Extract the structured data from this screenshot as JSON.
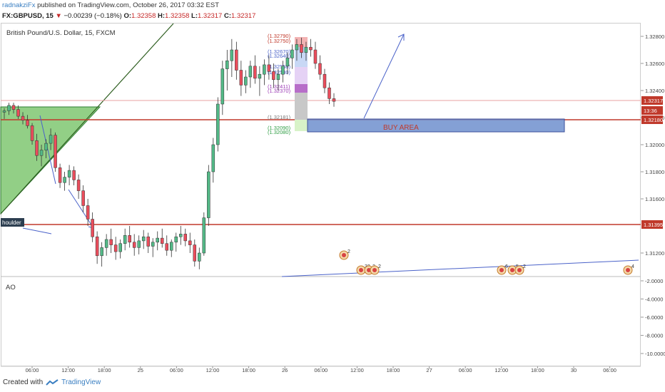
{
  "header": {
    "author": "radnakziFx",
    "published": "published on TradingView.com, October 26, 2017 03:32 EST",
    "symbol": "FX:GBPUSD, 15",
    "change_arrow": "▼",
    "change": "−0.00239 (−0.18%)",
    "o_label": "O:",
    "o_value": "1.32358",
    "h_label": "H:",
    "h_value": "1.32358",
    "l_label": "L:",
    "l_value": "1.32317",
    "c_label": "C:",
    "c_value": "1.32317"
  },
  "chart_title": "British Pound/U.S. Dollar, 15, FXCM",
  "indicator_label": "AO",
  "footer": {
    "created": "Created with",
    "brand": "TradingView"
  },
  "colors": {
    "bull": "#53b987",
    "bear": "#eb4d5c",
    "level_line": "#c0392b",
    "buy_area": "#6f8fce",
    "trendline": "#4a62c9",
    "triangle": "#6dbf5e"
  },
  "chart_data": {
    "type": "candlestick",
    "y_axis": {
      "ticks": [
        "1.32800",
        "1.32600",
        "1.32400",
        "1.32200",
        "1.32000",
        "1.31800",
        "1.31600",
        "1.31200"
      ],
      "labels_highlighted": [
        "1.32317",
        "13:36",
        "1.32180",
        "1.31395"
      ]
    },
    "ao_axis": {
      "ticks": [
        "-2.0000",
        "-4.0000",
        "-6.0000",
        "-8.0000",
        "-10.0000"
      ]
    },
    "x_axis": {
      "ticks": [
        "06:00",
        "12:00",
        "18:00",
        "25",
        "06:00",
        "12:00",
        "18:00",
        "26",
        "06:00",
        "12:00",
        "18:00",
        "27",
        "06:00",
        "12:00",
        "18:00",
        "30",
        "06:00"
      ]
    },
    "levels": [
      {
        "name": "resistance",
        "value": 1.3218
      },
      {
        "name": "support",
        "value": 1.31395
      }
    ],
    "annotations": [
      "BUY AREA",
      "houlder"
    ],
    "fib_labels": [
      "(1.32790)",
      "(1.32750)",
      "(1.32670)",
      "(1.32640)",
      "(1.32558)",
      "(1.32530)",
      "(1.32411)",
      "(1.32370)",
      "(1.32181)",
      "(1.32090)",
      "(1.32080)"
    ],
    "event_labels": [
      "2",
      "32",
      "2",
      "2",
      "6",
      "5",
      "2",
      "4"
    ],
    "approx_candles": [
      [
        1.3224,
        1.3227,
        1.3219,
        1.3225
      ],
      [
        1.3225,
        1.3231,
        1.3222,
        1.3229
      ],
      [
        1.3229,
        1.3231,
        1.3223,
        1.3226
      ],
      [
        1.3226,
        1.3229,
        1.3219,
        1.3221
      ],
      [
        1.3221,
        1.3224,
        1.3215,
        1.3218
      ],
      [
        1.3218,
        1.3222,
        1.3212,
        1.3214
      ],
      [
        1.3214,
        1.3216,
        1.32,
        1.3203
      ],
      [
        1.3203,
        1.3208,
        1.3188,
        1.3192
      ],
      [
        1.3192,
        1.32,
        1.3184,
        1.3196
      ],
      [
        1.3196,
        1.3204,
        1.319,
        1.3201
      ],
      [
        1.3201,
        1.3212,
        1.3196,
        1.3207
      ],
      [
        1.3207,
        1.3209,
        1.318,
        1.3183
      ],
      [
        1.3183,
        1.3186,
        1.3168,
        1.3172
      ],
      [
        1.3172,
        1.318,
        1.3166,
        1.3176
      ],
      [
        1.3176,
        1.3185,
        1.317,
        1.3181
      ],
      [
        1.3181,
        1.3184,
        1.317,
        1.3174
      ],
      [
        1.3174,
        1.3178,
        1.316,
        1.3166
      ],
      [
        1.3166,
        1.317,
        1.315,
        1.3155
      ],
      [
        1.3155,
        1.316,
        1.314,
        1.3145
      ],
      [
        1.3145,
        1.315,
        1.3128,
        1.3132
      ],
      [
        1.3132,
        1.3136,
        1.3112,
        1.3118
      ],
      [
        1.3118,
        1.3128,
        1.311,
        1.3124
      ],
      [
        1.3124,
        1.3134,
        1.3118,
        1.313
      ],
      [
        1.313,
        1.3138,
        1.312,
        1.3126
      ],
      [
        1.3126,
        1.3132,
        1.3115,
        1.3121
      ],
      [
        1.3121,
        1.313,
        1.3116,
        1.3127
      ],
      [
        1.3127,
        1.3138,
        1.3122,
        1.3133
      ],
      [
        1.3133,
        1.314,
        1.3124,
        1.3128
      ],
      [
        1.3128,
        1.3134,
        1.3118,
        1.3124
      ],
      [
        1.3124,
        1.3133,
        1.3119,
        1.3129
      ],
      [
        1.3129,
        1.3137,
        1.3123,
        1.3132
      ],
      [
        1.3132,
        1.3135,
        1.312,
        1.3125
      ],
      [
        1.3125,
        1.3131,
        1.3117,
        1.3128
      ],
      [
        1.3128,
        1.3136,
        1.3122,
        1.3131
      ],
      [
        1.3131,
        1.3138,
        1.3124,
        1.3127
      ],
      [
        1.3127,
        1.3133,
        1.3118,
        1.3122
      ],
      [
        1.3122,
        1.313,
        1.3117,
        1.3128
      ],
      [
        1.3128,
        1.3135,
        1.3121,
        1.3132
      ],
      [
        1.3132,
        1.314,
        1.3126,
        1.3134
      ],
      [
        1.3134,
        1.3138,
        1.3125,
        1.3129
      ],
      [
        1.3129,
        1.3135,
        1.312,
        1.3126
      ],
      [
        1.3126,
        1.313,
        1.311,
        1.3114
      ],
      [
        1.3114,
        1.3124,
        1.3108,
        1.312
      ],
      [
        1.312,
        1.315,
        1.3118,
        1.3146
      ],
      [
        1.3146,
        1.3185,
        1.314,
        1.318
      ],
      [
        1.318,
        1.3205,
        1.3172,
        1.32
      ],
      [
        1.32,
        1.3235,
        1.3195,
        1.323
      ],
      [
        1.323,
        1.3262,
        1.3222,
        1.3256
      ],
      [
        1.3256,
        1.327,
        1.324,
        1.3262
      ],
      [
        1.3262,
        1.3278,
        1.325,
        1.327
      ],
      [
        1.327,
        1.3276,
        1.3248,
        1.3255
      ],
      [
        1.3255,
        1.3262,
        1.3236,
        1.3244
      ],
      [
        1.3244,
        1.3255,
        1.3238,
        1.325
      ],
      [
        1.325,
        1.3262,
        1.3242,
        1.3258
      ],
      [
        1.3258,
        1.3266,
        1.3245,
        1.3249
      ],
      [
        1.3249,
        1.3258,
        1.3236,
        1.3252
      ],
      [
        1.3252,
        1.3263,
        1.3244,
        1.3259
      ],
      [
        1.3259,
        1.3266,
        1.3248,
        1.3254
      ],
      [
        1.3254,
        1.326,
        1.3242,
        1.3248
      ],
      [
        1.3248,
        1.3256,
        1.324,
        1.3252
      ],
      [
        1.3252,
        1.3262,
        1.3246,
        1.3258
      ],
      [
        1.3258,
        1.3268,
        1.3252,
        1.3264
      ],
      [
        1.3264,
        1.3274,
        1.3256,
        1.327
      ],
      [
        1.327,
        1.3278,
        1.3262,
        1.3274
      ],
      [
        1.3274,
        1.3279,
        1.3264,
        1.3268
      ],
      [
        1.3268,
        1.3276,
        1.3262,
        1.3272
      ],
      [
        1.3272,
        1.3278,
        1.3265,
        1.327
      ],
      [
        1.327,
        1.3276,
        1.3256,
        1.326
      ],
      [
        1.326,
        1.3266,
        1.3248,
        1.3252
      ],
      [
        1.3252,
        1.3256,
        1.3238,
        1.3242
      ],
      [
        1.3242,
        1.3246,
        1.323,
        1.3234
      ],
      [
        1.3234,
        1.3238,
        1.3228,
        1.3232
      ]
    ]
  }
}
